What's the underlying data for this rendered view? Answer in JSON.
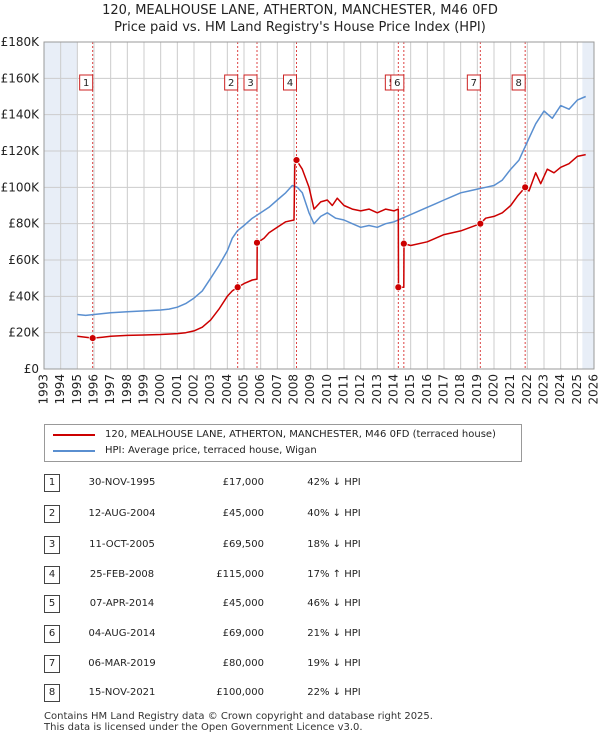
{
  "title_line1": "120, MEALHOUSE LANE, ATHERTON, MANCHESTER, M46 0FD",
  "title_line2": "Price paid vs. HM Land Registry's House Price Index (HPI)",
  "colors": {
    "property": "#cc0000",
    "hpi": "#5a8fd0",
    "grid": "#cccccc",
    "shade": "#e8eef7",
    "vline": "#dd4444"
  },
  "chart_data": {
    "type": "line",
    "xlim": [
      1993,
      2026
    ],
    "ylim": [
      0,
      180000
    ],
    "yticks": [
      0,
      20000,
      40000,
      60000,
      80000,
      100000,
      120000,
      140000,
      160000,
      180000
    ],
    "ytick_labels": [
      "£0",
      "£20K",
      "£40K",
      "£60K",
      "£80K",
      "£100K",
      "£120K",
      "£140K",
      "£160K",
      "£180K"
    ],
    "xticks": [
      1993,
      1994,
      1995,
      1996,
      1997,
      1998,
      1999,
      2000,
      2001,
      2002,
      2003,
      2004,
      2005,
      2006,
      2007,
      2008,
      2009,
      2010,
      2011,
      2012,
      2013,
      2014,
      2015,
      2016,
      2017,
      2018,
      2019,
      2020,
      2021,
      2022,
      2023,
      2024,
      2025,
      2026
    ],
    "shaded_ranges": [
      [
        1993,
        1995.0
      ],
      [
        2025.3,
        2026
      ]
    ],
    "series": [
      {
        "name": "120, MEALHOUSE LANE, ATHERTON, MANCHESTER, M46 0FD (terraced house)",
        "x": [
          1995.0,
          1995.5,
          1995.92,
          1996.5,
          1997,
          1998,
          1999,
          2000,
          2001,
          2001.5,
          2002,
          2002.5,
          2003,
          2003.5,
          2004,
          2004.3,
          2004.62,
          2005,
          2005.5,
          2005.78,
          2005.79,
          2006.2,
          2006.5,
          2007,
          2007.5,
          2008.0,
          2008.05,
          2008.15,
          2008.5,
          2008.9,
          2009.2,
          2009.6,
          2010,
          2010.3,
          2010.6,
          2011,
          2011.5,
          2012,
          2012.5,
          2013,
          2013.5,
          2014.0,
          2014.26,
          2014.27,
          2014.59,
          2014.6,
          2015,
          2016,
          2017,
          2018,
          2019.18,
          2019.5,
          2020,
          2020.5,
          2021.0,
          2021.4,
          2021.87,
          2022.1,
          2022.5,
          2022.8,
          2023.2,
          2023.6,
          2024,
          2024.5,
          2025,
          2025.5
        ],
        "y": [
          18000,
          17500,
          17000,
          17500,
          18000,
          18500,
          18700,
          19000,
          19500,
          20000,
          21000,
          23000,
          27000,
          33000,
          40000,
          43000,
          45000,
          47000,
          49000,
          49500,
          69500,
          72000,
          75000,
          78000,
          81000,
          82000,
          112000,
          115000,
          110000,
          100000,
          88000,
          92000,
          93000,
          90000,
          94000,
          90000,
          88000,
          87000,
          88000,
          86000,
          88000,
          87000,
          88000,
          45000,
          45000,
          69000,
          68000,
          70000,
          74000,
          76000,
          80000,
          83000,
          84000,
          86000,
          90000,
          95000,
          100000,
          98000,
          108000,
          102000,
          110000,
          108000,
          111000,
          113000,
          117000,
          118000
        ]
      },
      {
        "name": "HPI: Average price, terraced house, Wigan",
        "x": [
          1995.0,
          1995.5,
          1996,
          1997,
          1998,
          1999,
          2000,
          2000.5,
          2001,
          2001.5,
          2002,
          2002.5,
          2003,
          2003.5,
          2004,
          2004.3,
          2004.6,
          2005,
          2005.5,
          2006,
          2006.5,
          2007,
          2007.5,
          2007.9,
          2008.2,
          2008.5,
          2008.9,
          2009.2,
          2009.6,
          2010,
          2010.5,
          2011,
          2011.5,
          2012,
          2012.5,
          2013,
          2013.5,
          2014,
          2014.5,
          2015,
          2015.5,
          2016,
          2016.5,
          2017,
          2017.5,
          2018,
          2018.5,
          2019,
          2019.5,
          2020,
          2020.5,
          2021,
          2021.5,
          2022,
          2022.5,
          2023,
          2023.5,
          2024,
          2024.5,
          2025,
          2025.5
        ],
        "y": [
          30000,
          29500,
          30000,
          31000,
          31500,
          32000,
          32500,
          33000,
          34000,
          36000,
          39000,
          43000,
          50000,
          57000,
          65000,
          72000,
          76000,
          79000,
          83000,
          86000,
          89000,
          93000,
          97000,
          101000,
          100000,
          97000,
          86000,
          80000,
          84000,
          86000,
          83000,
          82000,
          80000,
          78000,
          79000,
          78000,
          80000,
          81000,
          83000,
          85000,
          87000,
          89000,
          91000,
          93000,
          95000,
          97000,
          98000,
          99000,
          100000,
          101000,
          104000,
          110000,
          115000,
          125000,
          135000,
          142000,
          138000,
          145000,
          143000,
          148000,
          150000
        ]
      }
    ],
    "markers": [
      {
        "label": "1",
        "x": 1995.92,
        "y": 17000
      },
      {
        "label": "2",
        "x": 2004.62,
        "y": 45000
      },
      {
        "label": "3",
        "x": 2005.78,
        "y": 69500
      },
      {
        "label": "4",
        "x": 2008.15,
        "y": 115000
      },
      {
        "label": "5",
        "x": 2014.26,
        "y": 45000
      },
      {
        "label": "6",
        "x": 2014.59,
        "y": 69000
      },
      {
        "label": "7",
        "x": 2019.18,
        "y": 80000
      },
      {
        "label": "8",
        "x": 2021.87,
        "y": 100000
      }
    ]
  },
  "legend": {
    "property_label": "120, MEALHOUSE LANE, ATHERTON, MANCHESTER, M46 0FD (terraced house)",
    "hpi_label": "HPI: Average price, terraced house, Wigan"
  },
  "transactions": [
    {
      "num": "1",
      "date": "30-NOV-1995",
      "price": "£17,000",
      "hpi": "42% ↓ HPI"
    },
    {
      "num": "2",
      "date": "12-AUG-2004",
      "price": "£45,000",
      "hpi": "40% ↓ HPI"
    },
    {
      "num": "3",
      "date": "11-OCT-2005",
      "price": "£69,500",
      "hpi": "18% ↓ HPI"
    },
    {
      "num": "4",
      "date": "25-FEB-2008",
      "price": "£115,000",
      "hpi": "17% ↑ HPI"
    },
    {
      "num": "5",
      "date": "07-APR-2014",
      "price": "£45,000",
      "hpi": "46% ↓ HPI"
    },
    {
      "num": "6",
      "date": "04-AUG-2014",
      "price": "£69,000",
      "hpi": "21% ↓ HPI"
    },
    {
      "num": "7",
      "date": "06-MAR-2019",
      "price": "£80,000",
      "hpi": "19% ↓ HPI"
    },
    {
      "num": "8",
      "date": "15-NOV-2021",
      "price": "£100,000",
      "hpi": "22% ↓ HPI"
    }
  ],
  "footer_line1": "Contains HM Land Registry data © Crown copyright and database right 2025.",
  "footer_line2": "This data is licensed under the Open Government Licence v3.0."
}
